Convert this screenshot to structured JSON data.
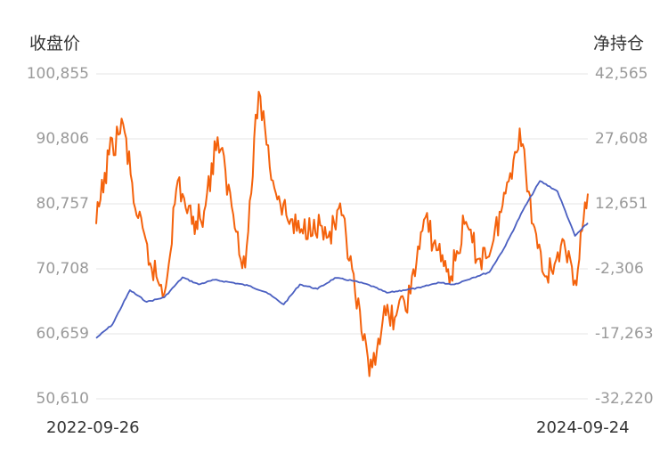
{
  "chart_data": {
    "type": "line",
    "ylabel_left": "收盘价",
    "ylabel_right": "净持仓",
    "x_range": [
      "2022-09-26",
      "2024-09-24"
    ],
    "x_tick_labels": [
      "2022-09-26",
      "2024-09-24"
    ],
    "left_axis": {
      "ylim": [
        50610,
        100855
      ],
      "ticks": [
        "100,855",
        "90,806",
        "80,757",
        "70,708",
        "60,659",
        "50,610"
      ]
    },
    "right_axis": {
      "ylim": [
        -32220,
        42565
      ],
      "ticks": [
        "42,565",
        "27,608",
        "12,651",
        "-2,306",
        "-17,263",
        "-32,220"
      ]
    },
    "grid": true,
    "series": [
      {
        "axis": "left",
        "color": "#4a5fc1",
        "x": [
          "2022-09-26",
          "2022-10-20",
          "2022-11-15",
          "2022-12-10",
          "2023-01-05",
          "2023-02-01",
          "2023-02-25",
          "2023-03-20",
          "2023-04-15",
          "2023-05-10",
          "2023-06-05",
          "2023-07-01",
          "2023-07-25",
          "2023-08-20",
          "2023-09-15",
          "2023-10-10",
          "2023-11-05",
          "2023-12-01",
          "2023-12-25",
          "2024-01-20",
          "2024-02-15",
          "2024-03-10",
          "2024-04-05",
          "2024-05-01",
          "2024-05-25",
          "2024-06-20",
          "2024-07-15",
          "2024-08-10",
          "2024-09-05",
          "2024-09-24"
        ],
        "values": [
          60000,
          62100,
          67400,
          65600,
          66300,
          69400,
          68300,
          69000,
          68600,
          68100,
          67100,
          65200,
          68300,
          67600,
          69300,
          68900,
          68200,
          67000,
          67400,
          67800,
          68600,
          68300,
          69300,
          70200,
          74300,
          79800,
          84300,
          82700,
          75800,
          77800
        ]
      },
      {
        "axis": "right",
        "color": "#f4620c",
        "x": [
          "2022-09-26",
          "2022-10-15",
          "2022-11-05",
          "2022-11-25",
          "2022-12-15",
          "2023-01-05",
          "2023-01-25",
          "2023-02-15",
          "2023-03-05",
          "2023-03-25",
          "2023-04-15",
          "2023-05-05",
          "2023-05-25",
          "2023-06-15",
          "2023-07-05",
          "2023-07-25",
          "2023-08-15",
          "2023-09-05",
          "2023-09-25",
          "2023-10-15",
          "2023-11-05",
          "2023-11-25",
          "2023-12-15",
          "2024-01-05",
          "2024-01-25",
          "2024-02-15",
          "2024-03-05",
          "2024-03-25",
          "2024-04-15",
          "2024-05-05",
          "2024-05-25",
          "2024-06-15",
          "2024-07-05",
          "2024-07-25",
          "2024-08-15",
          "2024-09-05",
          "2024-09-24"
        ],
        "values": [
          8000,
          24000,
          31000,
          10000,
          -1000,
          -8000,
          18000,
          8000,
          11000,
          28000,
          12000,
          -2000,
          39000,
          18000,
          10000,
          6000,
          9000,
          5000,
          10000,
          -8000,
          -27000,
          -14000,
          -13000,
          -8000,
          9000,
          2000,
          -4000,
          8000,
          0,
          3000,
          15000,
          30000,
          8000,
          -4000,
          3000,
          -5000,
          15000
        ]
      }
    ]
  }
}
